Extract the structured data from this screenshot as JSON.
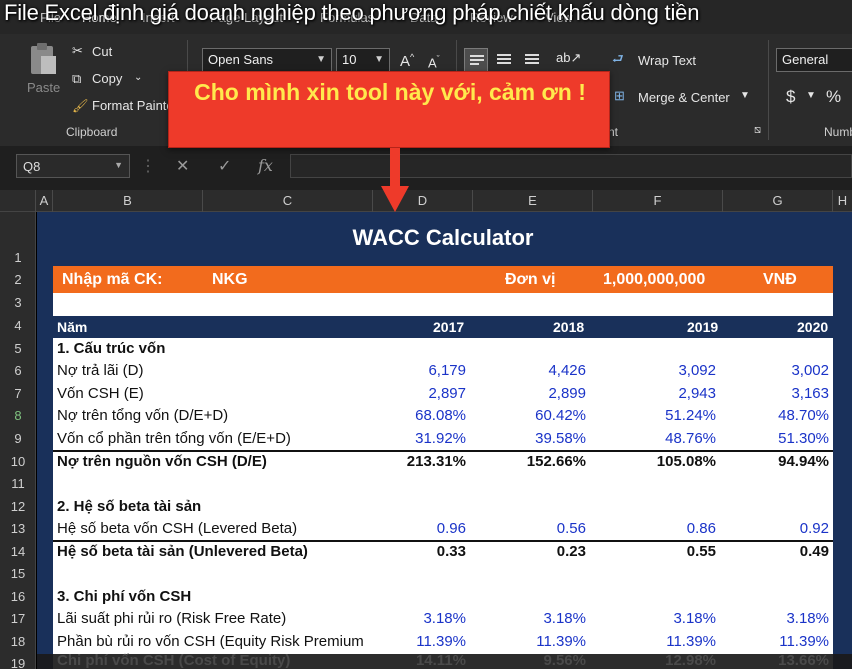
{
  "video_title": "File Excel định giá doanh nghiệp theo phương pháp chiết khấu dòng tiền",
  "ribbon": {
    "tabs": [
      "File",
      "Home",
      "Insert",
      "Page Layout",
      "Formulas",
      "Data",
      "Review",
      "View"
    ],
    "clipboard": {
      "paste": "Paste",
      "cut": "Cut",
      "copy": "Copy",
      "format_painter": "Format Painter",
      "group_label": "Clipboard"
    },
    "font": {
      "name": "Open Sans",
      "size": "10"
    },
    "alignment": {
      "wrap_text": "Wrap Text",
      "merge_center": "Merge & Center",
      "group_label_tail": "nt"
    },
    "number": {
      "format": "General",
      "currency": "$",
      "percent": "%",
      "group_label": "Numb"
    }
  },
  "callout": {
    "text": "Cho mình xin tool này với, cảm ơn !"
  },
  "formula_bar": {
    "cell_ref": "Q8",
    "cancel": "✕",
    "enter": "✓",
    "fx": "fx"
  },
  "grid": {
    "columns": [
      "A",
      "B",
      "C",
      "D",
      "E",
      "F",
      "G",
      "H"
    ],
    "rows": [
      "1",
      "2",
      "3",
      "4",
      "5",
      "6",
      "7",
      "8",
      "9",
      "10",
      "11",
      "12",
      "13",
      "14",
      "15",
      "16",
      "17",
      "18",
      "19"
    ],
    "selected_row": "8"
  },
  "sheet": {
    "title": "WACC Calculator",
    "ticker_label": "Nhập mã CK:",
    "ticker": "NKG",
    "unit_label": "Đơn vị",
    "unit_value": "1,000,000,000",
    "currency": "VNĐ",
    "year_label": "Năm",
    "years": [
      "2017",
      "2018",
      "2019",
      "2020"
    ],
    "sections": {
      "capital_structure": "1. Cấu trúc vốn",
      "asset_beta": "2. Hệ số beta tài sản",
      "cost_of_equity": "3. Chi phí vốn CSH"
    },
    "rows": {
      "debt": {
        "label": "Nợ trả lãi (D)",
        "values": [
          "6,179",
          "4,426",
          "3,092",
          "3,002"
        ]
      },
      "equity": {
        "label": "Vốn CSH (E)",
        "values": [
          "2,897",
          "2,899",
          "2,943",
          "3,163"
        ]
      },
      "debt_ratio": {
        "label": "Nợ trên tổng vốn (D/E+D)",
        "values": [
          "68.08%",
          "60.42%",
          "51.24%",
          "48.70%"
        ]
      },
      "equity_ratio": {
        "label": "Vốn cổ phần trên tổng vốn (E/E+D)",
        "values": [
          "31.92%",
          "39.58%",
          "48.76%",
          "51.30%"
        ]
      },
      "de_ratio": {
        "label": "Nợ trên nguồn vốn CSH (D/E)",
        "values": [
          "213.31%",
          "152.66%",
          "105.08%",
          "94.94%"
        ]
      },
      "levered_beta": {
        "label": "Hệ số beta vốn CSH (Levered Beta)",
        "values": [
          "0.96",
          "0.56",
          "0.86",
          "0.92"
        ]
      },
      "unlevered_beta": {
        "label": "Hệ số beta tài sản (Unlevered Beta)",
        "values": [
          "0.33",
          "0.23",
          "0.55",
          "0.49"
        ]
      },
      "risk_free": {
        "label": "Lãi suất phi rủi ro (Risk Free Rate)",
        "values": [
          "3.18%",
          "3.18%",
          "3.18%",
          "3.18%"
        ]
      },
      "erp": {
        "label": "Phần bù rủi ro vốn CSH (Equity Risk Premium",
        "values": [
          "11.39%",
          "11.39%",
          "11.39%",
          "11.39%"
        ]
      },
      "cost_equity": {
        "label": "Chi phí vốn CSH (Cost of Equity)",
        "values": [
          "14.11%",
          "9.56%",
          "12.98%",
          "13.66%"
        ]
      }
    }
  }
}
